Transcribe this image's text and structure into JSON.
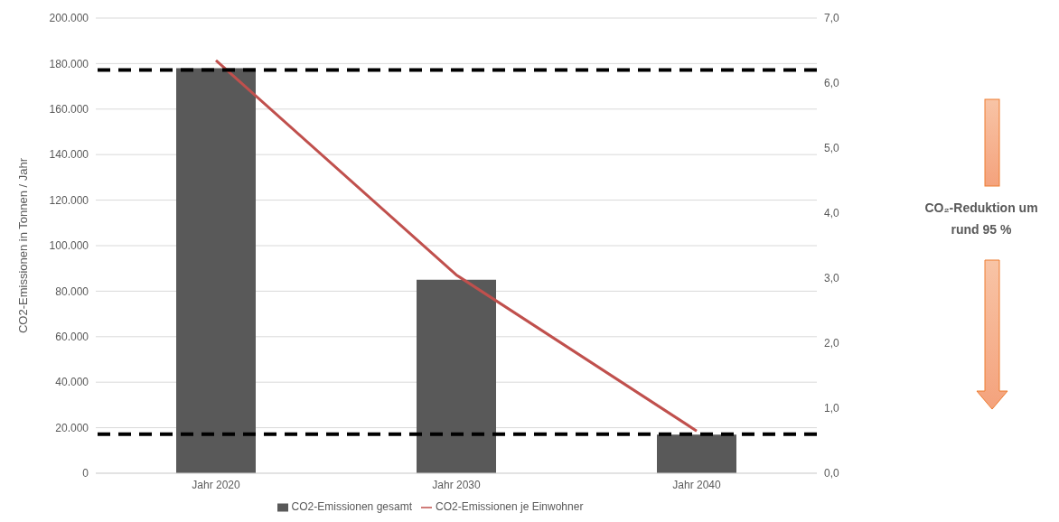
{
  "chart_data": {
    "type": "bar",
    "categories": [
      "Jahr 2020",
      "Jahr 2030",
      "Jahr 2040"
    ],
    "ylabel": "CO2-Emissionen in Tonnen / Jahr",
    "series": [
      {
        "name": "CO2-Emissionen gesamt",
        "color": "#595959",
        "values": [
          178000,
          85000,
          17000
        ]
      },
      {
        "name": "CO2-Emissionen je Einwohner",
        "type": "line",
        "axis": "y2",
        "color": "#c0504d",
        "values": [
          6.35,
          3.05,
          0.65
        ]
      }
    ],
    "ylim": [
      0,
      200000
    ],
    "yticks": [
      {
        "value": 0,
        "label": "0"
      },
      {
        "value": 20000,
        "label": "20.000"
      },
      {
        "value": 40000,
        "label": "40.000"
      },
      {
        "value": 60000,
        "label": "60.000"
      },
      {
        "value": 80000,
        "label": "80.000"
      },
      {
        "value": 100000,
        "label": "100.000"
      },
      {
        "value": 120000,
        "label": "120.000"
      },
      {
        "value": 140000,
        "label": "140.000"
      },
      {
        "value": 160000,
        "label": "160.000"
      },
      {
        "value": 180000,
        "label": "180.000"
      },
      {
        "value": 200000,
        "label": "200.000"
      }
    ],
    "y2lim": [
      0,
      7
    ],
    "y2ticks": [
      {
        "value": 0,
        "label": "0,0"
      },
      {
        "value": 1,
        "label": "1,0"
      },
      {
        "value": 2,
        "label": "2,0"
      },
      {
        "value": 3,
        "label": "3,0"
      },
      {
        "value": 4,
        "label": "4,0"
      },
      {
        "value": 5,
        "label": "5,0"
      },
      {
        "value": 6,
        "label": "6,0"
      },
      {
        "value": 7,
        "label": "7,0"
      }
    ],
    "ref_lines": [
      {
        "axis": "y2",
        "value": 6.2,
        "color": "#000000",
        "line_style": "dashed"
      },
      {
        "axis": "y2",
        "value": 0.6,
        "color": "#000000",
        "line_style": "dashed"
      }
    ],
    "annotations": [
      "CO₂-Reduktion um rund 95 %"
    ],
    "grid": "y",
    "legend": "bottom",
    "marker": "none",
    "line_style": "solid"
  }
}
